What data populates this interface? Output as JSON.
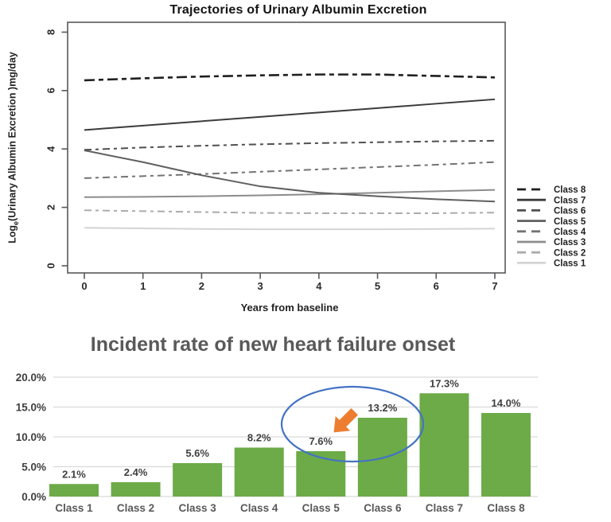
{
  "page": {
    "background": "#ffffff"
  },
  "chart_data": [
    {
      "id": "trajectories",
      "type": "line",
      "title": "Trajectories of Urinary Albumin Excretion",
      "xlabel": "Years from baseline",
      "ylabel": "Log e (Urinary Albumin Excretion )mg/day",
      "ylabel_parts": {
        "prefix": "Log",
        "sub": "e",
        "rest": "(Urinary Albumin Excretion )mg/day"
      },
      "x": [
        0,
        1,
        2,
        3,
        4,
        5,
        6,
        7
      ],
      "xticks": [
        0,
        1,
        2,
        3,
        4,
        5,
        6,
        7
      ],
      "yticks": [
        0,
        2,
        4,
        6,
        8
      ],
      "xlim": [
        0,
        7
      ],
      "ylim": [
        0,
        8
      ],
      "grid": false,
      "legend_position": "right-outside",
      "series": [
        {
          "name": "Class 8",
          "dash": "long",
          "color": "#1f1f1f",
          "width": 2.6,
          "values": [
            6.35,
            6.42,
            6.48,
            6.52,
            6.55,
            6.55,
            6.5,
            6.45
          ]
        },
        {
          "name": "Class 7",
          "dash": "solid",
          "color": "#3c3c3c",
          "width": 2,
          "values": [
            4.65,
            4.8,
            4.95,
            5.1,
            5.25,
            5.4,
            5.55,
            5.7
          ]
        },
        {
          "name": "Class 6",
          "dash": "dash",
          "color": "#4f4f4f",
          "width": 2,
          "values": [
            3.97,
            4.05,
            4.11,
            4.16,
            4.2,
            4.23,
            4.26,
            4.28
          ]
        },
        {
          "name": "Class 5",
          "dash": "solid",
          "color": "#5f5f5f",
          "width": 2,
          "values": [
            3.95,
            3.55,
            3.1,
            2.72,
            2.5,
            2.38,
            2.28,
            2.2
          ]
        },
        {
          "name": "Class 4",
          "dash": "dash",
          "color": "#737373",
          "width": 2,
          "values": [
            3.0,
            3.07,
            3.14,
            3.22,
            3.3,
            3.38,
            3.46,
            3.55
          ]
        },
        {
          "name": "Class 3",
          "dash": "solid",
          "color": "#8c8c8c",
          "width": 2,
          "values": [
            2.35,
            2.36,
            2.38,
            2.41,
            2.45,
            2.5,
            2.55,
            2.6
          ]
        },
        {
          "name": "Class 2",
          "dash": "dash",
          "color": "#ababab",
          "width": 2,
          "values": [
            1.9,
            1.87,
            1.84,
            1.81,
            1.8,
            1.8,
            1.8,
            1.82
          ]
        },
        {
          "name": "Class 1",
          "dash": "solid",
          "color": "#d4d4d4",
          "width": 2,
          "values": [
            1.3,
            1.28,
            1.26,
            1.25,
            1.25,
            1.25,
            1.26,
            1.27
          ]
        }
      ]
    },
    {
      "id": "incident_rate",
      "type": "bar",
      "title": "Incident rate of new heart failure onset",
      "title_color": "#595959",
      "categories": [
        "Class 1",
        "Class 2",
        "Class 3",
        "Class 4",
        "Class 5",
        "Class 6",
        "Class 7",
        "Class 8"
      ],
      "values": [
        2.1,
        2.4,
        5.6,
        8.2,
        7.6,
        13.2,
        17.3,
        14.0
      ],
      "labels": [
        "2.1%",
        "2.4%",
        "5.6%",
        "8.2%",
        "7.6%",
        "13.2%",
        "17.3%",
        "14.0%"
      ],
      "yticks": [
        "0.0%",
        "5.0%",
        "10.0%",
        "15.0%",
        "20.0%"
      ],
      "ytick_values": [
        0,
        5,
        10,
        15,
        20
      ],
      "ylim": [
        0,
        20
      ],
      "grid": true,
      "bar_color": "#6CAB47",
      "annotations": {
        "ellipse": {
          "highlighted_categories": [
            "Class 5",
            "Class 6"
          ],
          "color": "#4472C4"
        },
        "arrow": {
          "direction": "down-left",
          "target": "Class 6",
          "color": "#ED7D31"
        }
      }
    }
  ]
}
